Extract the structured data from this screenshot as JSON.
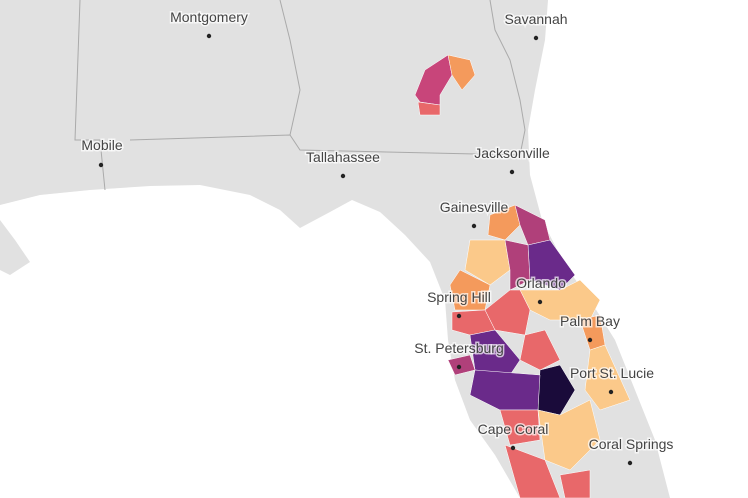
{
  "cities": [
    {
      "label": "Montgomery"
    },
    {
      "label": "Savannah"
    },
    {
      "label": "Mobile"
    },
    {
      "label": "Tallahassee"
    },
    {
      "label": "Jacksonville"
    },
    {
      "label": "Gainesville"
    },
    {
      "label": "Spring Hill"
    },
    {
      "label": "Orlando"
    },
    {
      "label": "Palm Bay"
    },
    {
      "label": "St. Petersburg"
    },
    {
      "label": "Port St. Lucie"
    },
    {
      "label": "Cape Coral"
    },
    {
      "label": "Coral Springs"
    }
  ]
}
